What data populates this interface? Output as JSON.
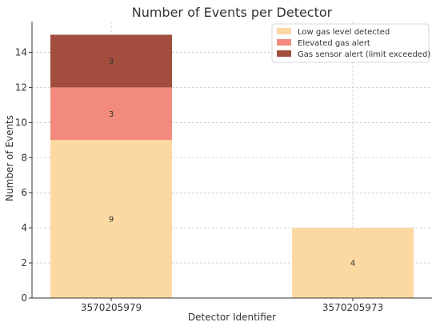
{
  "chart_data": {
    "type": "bar",
    "stacked": true,
    "title": "Number of Events per Detector",
    "xlabel": "Detector Identifier",
    "ylabel": "Number of Events",
    "categories": [
      "3570205979",
      "3570205973"
    ],
    "ylim": [
      0,
      15.75
    ],
    "yticks": [
      0,
      2,
      4,
      6,
      8,
      10,
      12,
      14
    ],
    "grid": true,
    "legend_position": "top-right",
    "series": [
      {
        "name": "Low gas level detected",
        "color": "#fcd9a0",
        "values": [
          9,
          4
        ]
      },
      {
        "name": "Elevated gas alert",
        "color": "#f28b7d",
        "values": [
          3,
          0
        ]
      },
      {
        "name": "Gas sensor alert (limit exceeded)",
        "color": "#a24d3d",
        "values": [
          3,
          0
        ]
      }
    ]
  }
}
